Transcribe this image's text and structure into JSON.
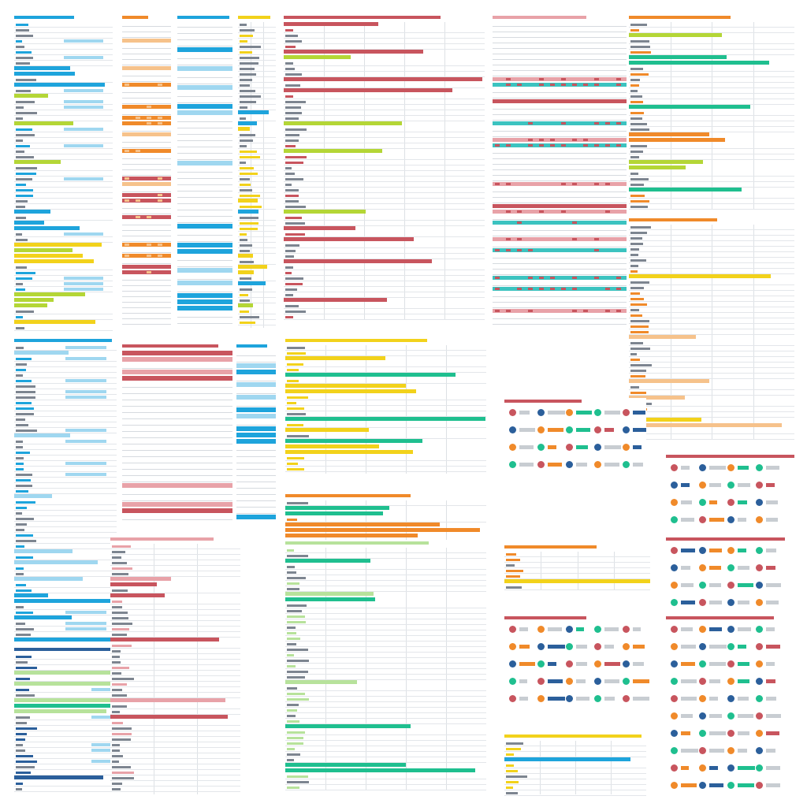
{
  "colors": {
    "blue": "#1ea4dc",
    "light_blue": "#9fd7f0",
    "yellow": "#f2d21b",
    "lime": "#b4d636",
    "green": "#1fbf8f",
    "light_green": "#b7e29b",
    "red": "#c8555e",
    "pink": "#e8a2a8",
    "orange": "#f08a2a",
    "light_orange": "#f6c28b",
    "navy": "#2b5f9b",
    "teal": "#3cc3c0",
    "gray": "#c8cdd2",
    "dark_gray": "#7d8590"
  },
  "panels": [
    {
      "name": "panel-blue-yellow-list-a",
      "palette": [
        "blue",
        "yellow",
        "lime",
        "gray"
      ],
      "style": "list"
    },
    {
      "name": "panel-orange-heat-a",
      "palette": [
        "orange",
        "light_orange",
        "red",
        "gray"
      ],
      "style": "blocks"
    },
    {
      "name": "panel-blue-stripes-a",
      "palette": [
        "blue",
        "light_blue",
        "gray"
      ],
      "style": "stripes"
    },
    {
      "name": "panel-yellow-table-a",
      "palette": [
        "yellow",
        "lime",
        "blue",
        "gray"
      ],
      "style": "table"
    },
    {
      "name": "panel-red-table-a",
      "palette": [
        "red",
        "lime",
        "gray"
      ],
      "style": "table"
    },
    {
      "name": "panel-pink-blocks-a",
      "palette": [
        "pink",
        "red",
        "teal",
        "gray"
      ],
      "style": "blocks"
    },
    {
      "name": "panel-orange-grid-a",
      "palette": [
        "orange",
        "light_orange",
        "yellow",
        "gray"
      ],
      "style": "table"
    },
    {
      "name": "panel-blue-list-b",
      "palette": [
        "blue",
        "yellow",
        "light_blue",
        "gray"
      ],
      "style": "list"
    },
    {
      "name": "panel-red-stripes-b",
      "palette": [
        "red",
        "pink",
        "gray"
      ],
      "style": "stripes"
    },
    {
      "name": "panel-green-table-b",
      "palette": [
        "yellow",
        "green",
        "gray"
      ],
      "style": "table"
    },
    {
      "name": "panel-color-table-b",
      "palette": [
        "orange",
        "lime",
        "green",
        "gray"
      ],
      "style": "table"
    },
    {
      "name": "panel-icons-b",
      "palette": [
        "red",
        "navy",
        "orange",
        "green"
      ],
      "style": "icons"
    },
    {
      "name": "panel-navy-green-c",
      "palette": [
        "navy",
        "light_green",
        "green",
        "gray"
      ],
      "style": "list"
    },
    {
      "name": "panel-pink-table-c",
      "palette": [
        "pink",
        "red",
        "gray"
      ],
      "style": "table"
    },
    {
      "name": "panel-green-stairs-c",
      "palette": [
        "light_green",
        "green",
        "gray"
      ],
      "style": "table"
    },
    {
      "name": "panel-orange-table-c",
      "palette": [
        "orange",
        "yellow",
        "gray"
      ],
      "style": "table"
    },
    {
      "name": "panel-icons-c",
      "palette": [
        "red",
        "orange",
        "navy",
        "green"
      ],
      "style": "icons"
    }
  ]
}
